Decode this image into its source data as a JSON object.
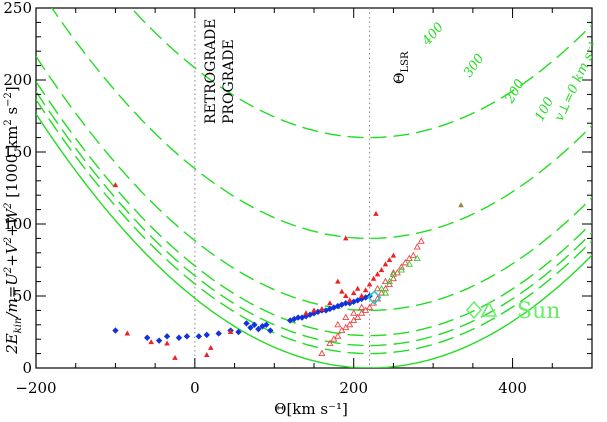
{
  "chart_data": {
    "type": "scatter",
    "xlabel": "Θ[km s⁻¹]",
    "ylabel_html": "2E_kin/m=U²+V²+W² [1000 km² s⁻²]",
    "ylabel_parts": {
      "a": "2E",
      "sub": "kin",
      "b": "/m=U",
      "c": "+V",
      "d": "+W",
      "e": "  [1000 km",
      "f": " s",
      "g": "]"
    },
    "xlim": [
      -200,
      500
    ],
    "ylim": [
      0,
      250
    ],
    "x_ticks": [
      -200,
      0,
      200,
      400
    ],
    "x_tick_labels": [
      "−200",
      "0",
      "200",
      "400"
    ],
    "y_ticks": [
      0,
      50,
      100,
      150,
      200,
      250
    ],
    "y_tick_labels": [
      "0",
      "50",
      "100",
      "150",
      "200",
      "250"
    ],
    "theta_lsr": 220,
    "reference_lines": [
      {
        "x": 0,
        "label_left": "RETROGRADE",
        "label_right": "PROGRADE"
      },
      {
        "x": 220,
        "label": "Θ",
        "label_sub": "LSR"
      }
    ],
    "vperp_curves": [
      {
        "vperp": 0,
        "label": "v⊥=0 km s⁻¹",
        "style": "solid"
      },
      {
        "vperp": 100,
        "label": "100",
        "style": "dashed"
      },
      {
        "vperp": 200,
        "label": "200",
        "style": "dashed"
      },
      {
        "vperp": 300,
        "label": "300",
        "style": "dashed"
      },
      {
        "vperp": 400,
        "label": "400",
        "style": "dashed"
      },
      {
        "vperp": 150,
        "label": "",
        "style": "dashed"
      },
      {
        "vperp": 125,
        "label": "",
        "style": "dashed"
      }
    ],
    "series": [
      {
        "name": "blue-diamonds",
        "marker": "diamond",
        "color": "#1133dd",
        "points": [
          [
            -100,
            26
          ],
          [
            -60,
            21
          ],
          [
            -45,
            19
          ],
          [
            -35,
            22
          ],
          [
            -20,
            21
          ],
          [
            -10,
            22
          ],
          [
            5,
            22
          ],
          [
            15,
            23
          ],
          [
            30,
            24
          ],
          [
            45,
            26
          ],
          [
            55,
            25
          ],
          [
            65,
            31
          ],
          [
            70,
            28
          ],
          [
            75,
            30
          ],
          [
            80,
            27
          ],
          [
            85,
            29
          ],
          [
            90,
            30
          ],
          [
            95,
            26
          ],
          [
            120,
            33
          ],
          [
            125,
            34
          ],
          [
            130,
            35
          ],
          [
            135,
            35
          ],
          [
            140,
            36
          ],
          [
            145,
            37
          ],
          [
            150,
            38
          ],
          [
            155,
            39
          ],
          [
            160,
            40
          ],
          [
            165,
            40
          ],
          [
            170,
            41
          ],
          [
            175,
            42
          ],
          [
            180,
            43
          ],
          [
            185,
            44
          ],
          [
            190,
            45
          ],
          [
            195,
            45
          ],
          [
            200,
            46
          ],
          [
            205,
            47
          ],
          [
            210,
            48
          ],
          [
            215,
            49
          ],
          [
            220,
            50
          ]
        ]
      },
      {
        "name": "red-triangles",
        "marker": "triangle-filled",
        "color": "#ee2222",
        "points": [
          [
            -100,
            127
          ],
          [
            -85,
            24
          ],
          [
            -55,
            18
          ],
          [
            -35,
            17
          ],
          [
            -25,
            7
          ],
          [
            15,
            9
          ],
          [
            20,
            14
          ],
          [
            45,
            25
          ],
          [
            180,
            60
          ],
          [
            185,
            53
          ],
          [
            190,
            50
          ],
          [
            195,
            47
          ],
          [
            200,
            52
          ],
          [
            205,
            55
          ],
          [
            210,
            50
          ],
          [
            215,
            54
          ],
          [
            220,
            58
          ],
          [
            225,
            62
          ],
          [
            230,
            65
          ],
          [
            235,
            68
          ],
          [
            240,
            72
          ],
          [
            245,
            75
          ],
          [
            250,
            78
          ],
          [
            228,
            107
          ],
          [
            190,
            90
          ],
          [
            140,
            38
          ],
          [
            150,
            40
          ],
          [
            170,
            45
          ],
          [
            160,
            41
          ]
        ]
      },
      {
        "name": "red-open-triangles",
        "marker": "triangle-open",
        "color": "#ee4444",
        "points": [
          [
            160,
            10
          ],
          [
            170,
            17
          ],
          [
            175,
            20
          ],
          [
            180,
            22
          ],
          [
            185,
            26
          ],
          [
            190,
            28
          ],
          [
            195,
            30
          ],
          [
            200,
            33
          ],
          [
            205,
            35
          ],
          [
            210,
            38
          ],
          [
            215,
            40
          ],
          [
            220,
            42
          ],
          [
            225,
            45
          ],
          [
            230,
            48
          ],
          [
            235,
            52
          ],
          [
            240,
            55
          ],
          [
            245,
            58
          ],
          [
            250,
            62
          ],
          [
            255,
            66
          ],
          [
            260,
            70
          ],
          [
            265,
            73
          ],
          [
            270,
            76
          ],
          [
            275,
            78
          ],
          [
            280,
            84
          ],
          [
            285,
            88
          ],
          [
            200,
            38
          ],
          [
            210,
            42
          ],
          [
            230,
            55
          ],
          [
            240,
            60
          ],
          [
            250,
            66
          ],
          [
            180,
            30
          ],
          [
            190,
            35
          ]
        ]
      },
      {
        "name": "green-triangles",
        "marker": "triangle-open",
        "color": "#33cc33",
        "points": [
          [
            235,
            55
          ],
          [
            245,
            60
          ],
          [
            250,
            65
          ],
          [
            260,
            68
          ],
          [
            270,
            72
          ],
          [
            280,
            76
          ],
          [
            240,
            52
          ]
        ]
      },
      {
        "name": "olive-point",
        "marker": "triangle-filled",
        "color": "#998833",
        "points": [
          [
            335,
            113
          ]
        ]
      }
    ],
    "sun": {
      "x": 226,
      "y": 49
    },
    "legend": {
      "text": "Sun",
      "position": "bottom-right"
    },
    "grid": false
  },
  "colors": {
    "curve": "#22dd22",
    "reference_line": "#888888",
    "axis": "#000000"
  }
}
